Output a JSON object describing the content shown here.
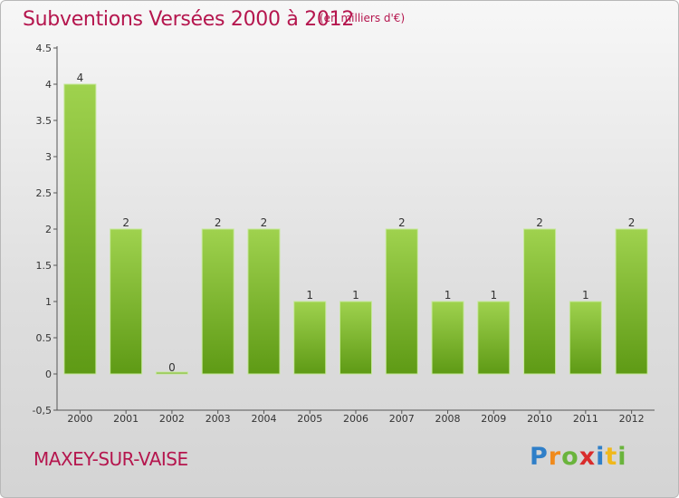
{
  "title": "Subventions Versées 2000 à 2012",
  "unit": "(en milliers d'€)",
  "commune": "MAXEY-SUR-VAISE",
  "logo": "Proxiti",
  "colors": {
    "title": "#b5164e",
    "bar_top": "#9fd24e",
    "bar_bottom": "#5e9a15"
  },
  "chart_data": {
    "type": "bar",
    "categories": [
      "2000",
      "2001",
      "2002",
      "2003",
      "2004",
      "2005",
      "2006",
      "2007",
      "2008",
      "2009",
      "2010",
      "2011",
      "2012"
    ],
    "values": [
      4,
      2,
      0,
      2,
      2,
      1,
      1,
      2,
      1,
      1,
      2,
      1,
      2
    ],
    "ylim": [
      -0.5,
      4.5
    ],
    "yticks": [
      "-0,5",
      "0",
      "0.5",
      "1",
      "1.5",
      "2",
      "2.5",
      "3",
      "3.5",
      "4",
      "4.5"
    ],
    "grid": false
  }
}
